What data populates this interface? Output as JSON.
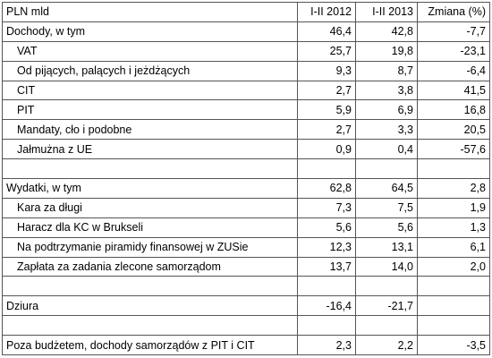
{
  "table": {
    "header": [
      "PLN mld",
      "I-II 2012",
      "I-II 2013",
      "Zmiana (%)"
    ],
    "sections": [
      {
        "rows": [
          {
            "label": "Dochody, w tym",
            "values": [
              "46,4",
              "42,8",
              "-7,7"
            ]
          },
          {
            "label": "VAT",
            "values": [
              "25,7",
              "19,8",
              "-23,1"
            ]
          },
          {
            "label": "Od pijących, palących i jeżdżących",
            "values": [
              "9,3",
              "8,7",
              "-6,4"
            ]
          },
          {
            "label": "CIT",
            "values": [
              "2,7",
              "3,8",
              "41,5"
            ]
          },
          {
            "label": "PIT",
            "values": [
              "5,9",
              "6,9",
              "16,8"
            ]
          },
          {
            "label": "Mandaty, cło i podobne",
            "values": [
              "2,7",
              "3,3",
              "20,5"
            ]
          },
          {
            "label": "Jałmużna z UE",
            "values": [
              "0,9",
              "0,4",
              "-57,6"
            ]
          }
        ]
      },
      {
        "rows": [
          {
            "label": "Wydatki, w tym",
            "values": [
              "62,8",
              "64,5",
              "2,8"
            ]
          },
          {
            "label": "Kara za długi",
            "values": [
              "7,3",
              "7,5",
              "1,9"
            ]
          },
          {
            "label": "Haracz dla KC w Brukseli",
            "values": [
              "5,6",
              "5,6",
              "1,3"
            ]
          },
          {
            "label": "Na podtrzymanie piramidy finansowej w ZUSie",
            "values": [
              "12,3",
              "13,1",
              "6,1"
            ]
          },
          {
            "label": "Zapłata za zadania zlecone samorządom",
            "values": [
              "13,7",
              "14,0",
              "2,0"
            ]
          }
        ]
      },
      {
        "rows": [
          {
            "label": "Dziura",
            "values": [
              "-16,4",
              "-21,7"
            ]
          }
        ]
      },
      {
        "rows": [
          {
            "label": "Poza budżetem, dochody samorządów z PIT i CIT",
            "values": [
              "2,3",
              "2,2",
              "-3,5"
            ]
          }
        ]
      }
    ]
  }
}
